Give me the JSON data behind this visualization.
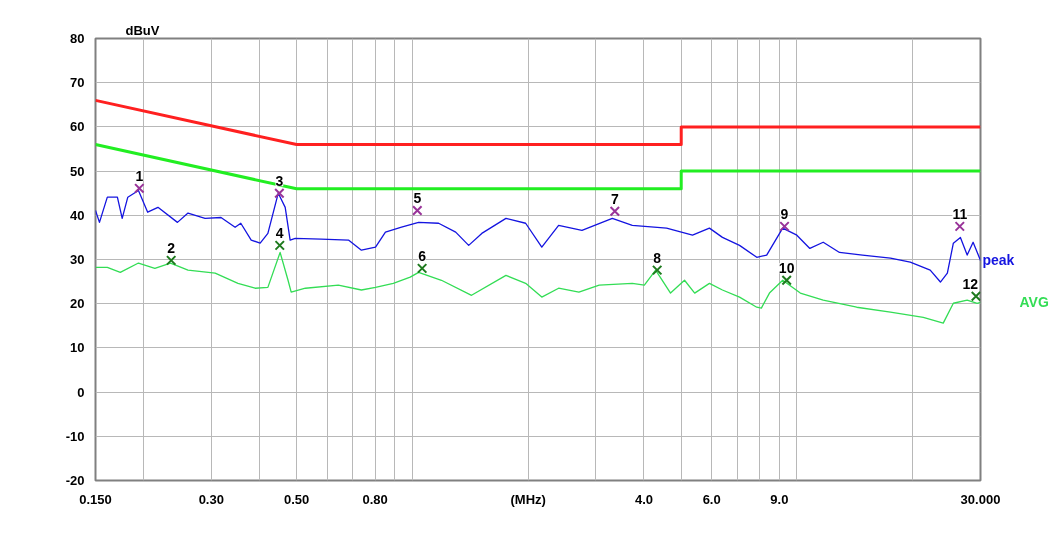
{
  "chart_data": {
    "type": "line",
    "ylabel": "dBuV",
    "log": "x",
    "grid": true,
    "xlim": [
      0.15,
      30
    ],
    "ylim": [
      -20,
      80
    ],
    "xticks": [
      {
        "value": 0.15,
        "label": "0.150"
      },
      {
        "value": 0.2,
        "label": null
      },
      {
        "value": 0.3,
        "label": "0.30"
      },
      {
        "value": 0.4,
        "label": null
      },
      {
        "value": 0.5,
        "label": "0.50"
      },
      {
        "value": 0.6,
        "label": null
      },
      {
        "value": 0.7,
        "label": null
      },
      {
        "value": 0.8,
        "label": "0.80"
      },
      {
        "value": 0.9,
        "label": null
      },
      {
        "value": 1,
        "label": null
      },
      {
        "value": 2,
        "label": "(MHz)"
      },
      {
        "value": 3,
        "label": null
      },
      {
        "value": 4,
        "label": "4.0"
      },
      {
        "value": 5,
        "label": null
      },
      {
        "value": 6,
        "label": "6.0"
      },
      {
        "value": 7,
        "label": null
      },
      {
        "value": 8,
        "label": null
      },
      {
        "value": 9,
        "label": "9.0"
      },
      {
        "value": 10,
        "label": null
      },
      {
        "value": 20,
        "label": null
      },
      {
        "value": 30,
        "label": "30.000"
      }
    ],
    "yticks": [
      -20,
      -10,
      0,
      10,
      20,
      30,
      40,
      50,
      60,
      70,
      80
    ],
    "series": [
      {
        "color": "#ff2020",
        "x": [
          0.15,
          0.5,
          5,
          5,
          30
        ],
        "values": [
          66,
          56,
          56,
          60,
          60
        ]
      },
      {
        "color": "#22ee22",
        "x": [
          0.15,
          0.5,
          5,
          5,
          30
        ],
        "values": [
          56,
          46,
          46,
          50,
          50
        ]
      },
      {
        "name": "peak",
        "color": "#1414e0",
        "x": [
          0.15,
          0.1536,
          0.161,
          0.171,
          0.176,
          0.182,
          0.194,
          0.205,
          0.218,
          0.245,
          0.261,
          0.289,
          0.318,
          0.346,
          0.358,
          0.381,
          0.402,
          0.421,
          0.448,
          0.467,
          0.481,
          0.496,
          0.579,
          0.682,
          0.737,
          0.802,
          0.851,
          0.937,
          1.038,
          1.17,
          1.296,
          1.401,
          1.515,
          1.751,
          1.97,
          2.17,
          2.4,
          2.76,
          3.31,
          3.73,
          4.58,
          5.35,
          5.92,
          6.4,
          7.09,
          7.86,
          8.34,
          9.18,
          9.99,
          10.8,
          11.7,
          12.9,
          14.8,
          17.5,
          19.7,
          22.2,
          23.6,
          24.6,
          25.5,
          26.6,
          27.7,
          28.7,
          30
        ],
        "values": [
          41.1,
          38.4,
          44.1,
          44.1,
          39.3,
          44.1,
          45.6,
          40.7,
          41.8,
          38.4,
          40.5,
          39.3,
          39.5,
          37.3,
          38.2,
          34.4,
          33.7,
          35.9,
          45.0,
          41.8,
          34.4,
          34.8,
          34.6,
          34.4,
          32.1,
          32.8,
          36.2,
          37.3,
          38.4,
          38.2,
          36.2,
          33.2,
          35.9,
          39.3,
          38.2,
          32.8,
          37.7,
          36.6,
          39.3,
          37.7,
          37.1,
          35.5,
          37.1,
          35.0,
          33.2,
          30.5,
          31.0,
          37.1,
          35.5,
          32.5,
          33.9,
          31.6,
          31.0,
          30.3,
          29.4,
          27.6,
          24.9,
          26.9,
          33.7,
          35.0,
          31.0,
          33.9,
          29.8
        ]
      },
      {
        "name": "AVG",
        "color": "#33dd55",
        "x": [
          0.15,
          0.161,
          0.174,
          0.194,
          0.214,
          0.235,
          0.261,
          0.307,
          0.352,
          0.39,
          0.421,
          0.453,
          0.475,
          0.484,
          0.527,
          0.642,
          0.737,
          0.802,
          0.892,
          0.987,
          1.038,
          1.19,
          1.425,
          1.751,
          1.97,
          2.17,
          2.4,
          2.71,
          3.06,
          3.73,
          4.01,
          4.29,
          4.69,
          5.1,
          5.42,
          5.92,
          6.4,
          7.09,
          7.86,
          8.08,
          8.48,
          9.18,
          10.2,
          11.7,
          14.3,
          17.5,
          21.3,
          24.0,
          25.5,
          27.7,
          29.4,
          30
        ],
        "values": [
          28.2,
          28.2,
          27.1,
          29.2,
          28.0,
          29.2,
          27.6,
          26.9,
          24.6,
          23.5,
          23.7,
          31.6,
          25.3,
          22.6,
          23.5,
          24.2,
          23.1,
          23.7,
          24.6,
          26.0,
          27.1,
          25.3,
          21.9,
          26.4,
          24.6,
          21.5,
          23.5,
          22.6,
          24.2,
          24.6,
          24.2,
          27.6,
          22.4,
          25.3,
          22.4,
          24.6,
          23.1,
          21.5,
          19.2,
          19.0,
          22.4,
          25.3,
          22.4,
          20.8,
          19.2,
          18.1,
          16.9,
          15.6,
          20.1,
          20.8,
          20.1,
          20.3
        ]
      },
      {
        "type": "scatter",
        "marker": "cross",
        "color": "#993399",
        "x": [
          0.195,
          0.451,
          1.03,
          3.36,
          9.28,
          26.5
        ],
        "values": [
          46.1,
          45.0,
          41.1,
          40.9,
          37.5,
          37.5
        ]
      },
      {
        "type": "scatter",
        "marker": "cross",
        "color": "#1e7a1e",
        "x": [
          0.236,
          0.452,
          1.06,
          4.33,
          9.4,
          29.2
        ],
        "values": [
          29.8,
          33.2,
          28.0,
          27.6,
          25.3,
          21.7
        ]
      }
    ],
    "annotations": [
      {
        "text": "1",
        "x": 0.195,
        "y": 46.1
      },
      {
        "text": "2",
        "x": 0.236,
        "y": 29.8
      },
      {
        "text": "3",
        "x": 0.451,
        "y": 45.0
      },
      {
        "text": "4",
        "x": 0.452,
        "y": 33.2
      },
      {
        "text": "5",
        "x": 1.03,
        "y": 41.1
      },
      {
        "text": "6",
        "x": 1.06,
        "y": 28.0
      },
      {
        "text": "7",
        "x": 3.36,
        "y": 40.9
      },
      {
        "text": "8",
        "x": 4.33,
        "y": 27.6
      },
      {
        "text": "9",
        "x": 9.28,
        "y": 37.5
      },
      {
        "text": "10",
        "x": 9.4,
        "y": 25.3
      },
      {
        "text": "11",
        "x": 26.5,
        "y": 37.5
      },
      {
        "text": "12",
        "x": 29.2,
        "y": 21.7
      }
    ]
  }
}
